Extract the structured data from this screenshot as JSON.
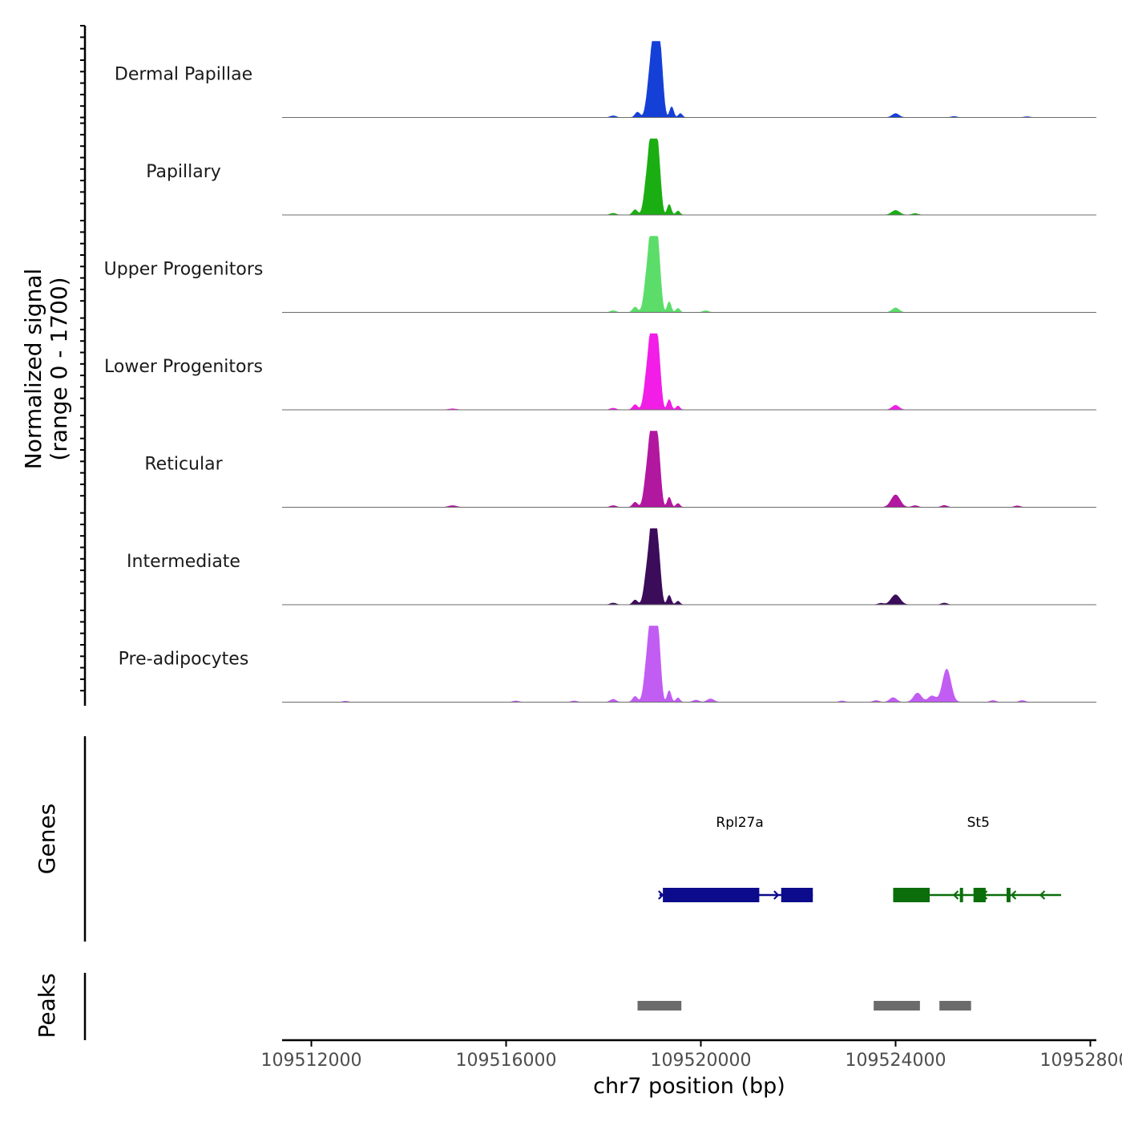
{
  "chart_data": {
    "type": "area",
    "title": "",
    "ylabel_line1": "Normalized signal",
    "ylabel_line2": "(range 0 - 1700)",
    "y_range": [
      0,
      1700
    ],
    "xlabel": "chr7 position (bp)",
    "xlim": [
      109511600,
      109528000
    ],
    "x_ticks": [
      109512000,
      109516000,
      109520000,
      109524000,
      109528000
    ],
    "x_tick_labels": [
      "109512000",
      "109516000",
      "109520000",
      "109524000",
      "109528000"
    ],
    "baseline_color": "#6b6b6b",
    "peak_shape": [
      {
        "offset": 0,
        "height": 1.0,
        "width": 70
      },
      {
        "offset": 60,
        "height": 0.94,
        "width": 60
      },
      {
        "offset": -110,
        "height": 0.4,
        "width": 60
      },
      {
        "offset": 150,
        "height": 0.4,
        "width": 45
      },
      {
        "offset": -350,
        "height": 0.08,
        "width": 50
      },
      {
        "offset": 350,
        "height": 0.16,
        "width": 40
      },
      {
        "offset": 530,
        "height": 0.06,
        "width": 40
      }
    ],
    "series": [
      {
        "name": "Dermal Papillae",
        "color": "#1540d8",
        "main_peak": {
          "center": 109519050,
          "height": 1620
        },
        "minor_peaks": [
          {
            "center": 109524000,
            "height": 95,
            "width": 70
          },
          {
            "center": 109518200,
            "height": 40,
            "width": 60
          },
          {
            "center": 109525200,
            "height": 25,
            "width": 60
          },
          {
            "center": 109526700,
            "height": 20,
            "width": 60
          }
        ]
      },
      {
        "name": "Papillary",
        "color": "#1aae13",
        "main_peak": {
          "center": 109519000,
          "height": 1580
        },
        "minor_peaks": [
          {
            "center": 109524000,
            "height": 110,
            "width": 80
          },
          {
            "center": 109518200,
            "height": 40,
            "width": 60
          },
          {
            "center": 109524400,
            "height": 35,
            "width": 60
          }
        ]
      },
      {
        "name": "Upper Progenitors",
        "color": "#5cdd6a",
        "main_peak": {
          "center": 109519000,
          "height": 1620
        },
        "minor_peaks": [
          {
            "center": 109524000,
            "height": 110,
            "width": 70
          },
          {
            "center": 109518200,
            "height": 40,
            "width": 60
          },
          {
            "center": 109520100,
            "height": 40,
            "width": 60
          }
        ]
      },
      {
        "name": "Lower Progenitors",
        "color": "#f21de6",
        "main_peak": {
          "center": 109519000,
          "height": 1560
        },
        "minor_peaks": [
          {
            "center": 109524000,
            "height": 110,
            "width": 70
          },
          {
            "center": 109518200,
            "height": 40,
            "width": 60
          },
          {
            "center": 109514900,
            "height": 25,
            "width": 80
          }
        ]
      },
      {
        "name": "Reticular",
        "color": "#b2179f",
        "main_peak": {
          "center": 109519000,
          "height": 1520
        },
        "minor_peaks": [
          {
            "center": 109524000,
            "height": 300,
            "width": 90
          },
          {
            "center": 109518200,
            "height": 40,
            "width": 60
          },
          {
            "center": 109514900,
            "height": 40,
            "width": 80
          },
          {
            "center": 109524400,
            "height": 40,
            "width": 60
          },
          {
            "center": 109525000,
            "height": 45,
            "width": 60
          },
          {
            "center": 109526500,
            "height": 35,
            "width": 60
          }
        ]
      },
      {
        "name": "Intermediate",
        "color": "#3b0c5a",
        "main_peak": {
          "center": 109519000,
          "height": 1420
        },
        "minor_peaks": [
          {
            "center": 109524000,
            "height": 240,
            "width": 90
          },
          {
            "center": 109518200,
            "height": 40,
            "width": 60
          },
          {
            "center": 109525000,
            "height": 40,
            "width": 60
          },
          {
            "center": 109523700,
            "height": 35,
            "width": 60
          }
        ]
      },
      {
        "name": "Pre-adipocytes",
        "color": "#c25df3",
        "main_peak": {
          "center": 109519000,
          "height": 1750
        },
        "minor_peaks": [
          {
            "center": 109525050,
            "height": 800,
            "width": 85
          },
          {
            "center": 109524450,
            "height": 220,
            "width": 80
          },
          {
            "center": 109524750,
            "height": 150,
            "width": 80
          },
          {
            "center": 109523950,
            "height": 110,
            "width": 70
          },
          {
            "center": 109518200,
            "height": 70,
            "width": 60
          },
          {
            "center": 109520200,
            "height": 80,
            "width": 70
          },
          {
            "center": 109519900,
            "height": 50,
            "width": 60
          },
          {
            "center": 109523600,
            "height": 40,
            "width": 60
          },
          {
            "center": 109522900,
            "height": 30,
            "width": 60
          },
          {
            "center": 109526000,
            "height": 40,
            "width": 60
          },
          {
            "center": 109526600,
            "height": 40,
            "width": 60
          },
          {
            "center": 109516200,
            "height": 30,
            "width": 60
          },
          {
            "center": 109517400,
            "height": 30,
            "width": 60
          },
          {
            "center": 109512700,
            "height": 25,
            "width": 60
          }
        ]
      }
    ],
    "genes_label": "Genes",
    "genes": [
      {
        "name": "Rpl27a",
        "label_x": 109520800,
        "color": "#0b0b8c",
        "strand": "+",
        "start": 109519150,
        "end": 109522300,
        "exons": [
          [
            109519220,
            109521200
          ],
          [
            109521650,
            109522300
          ]
        ]
      },
      {
        "name": "St5",
        "label_x": 109525700,
        "color": "#0b6e0b",
        "strand": "-",
        "start": 109523950,
        "end": 109527400,
        "exons": [
          [
            109523950,
            109524700
          ],
          [
            109525320,
            109525380
          ],
          [
            109525600,
            109525850
          ],
          [
            109526280,
            109526360
          ]
        ]
      }
    ],
    "peaks_label": "Peaks",
    "peaks_color": "#6b6b6b",
    "peaks": [
      [
        109518700,
        109519600
      ],
      [
        109523550,
        109524500
      ],
      [
        109524900,
        109525550
      ]
    ]
  }
}
